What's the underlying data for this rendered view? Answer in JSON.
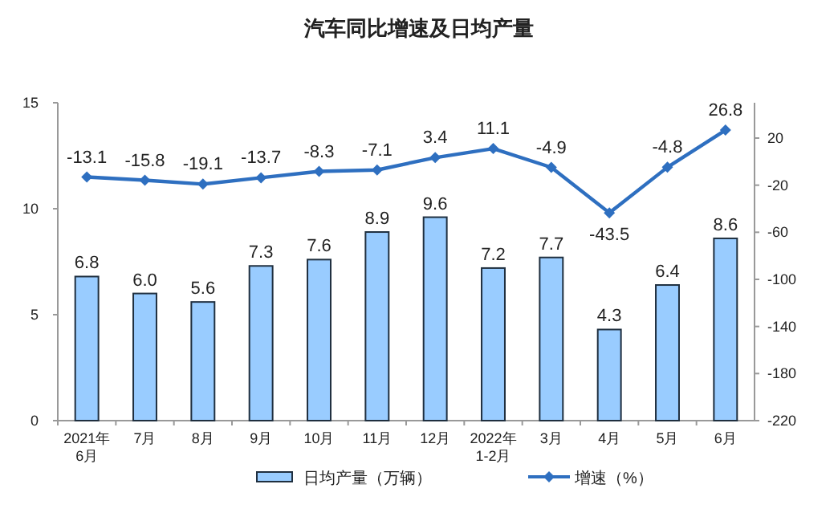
{
  "chart_data": {
    "type": "bar",
    "title": "汽车同比增速及日均产量",
    "categories": [
      "2021年\n6月",
      "7月",
      "8月",
      "9月",
      "10月",
      "11月",
      "12月",
      "2022年\n1-2月",
      "3月",
      "4月",
      "5月",
      "6月"
    ],
    "series": [
      {
        "name": "日均产量（万辆）",
        "color": "#99ccff",
        "values": [
          6.8,
          6.0,
          5.6,
          7.3,
          7.6,
          8.9,
          9.6,
          7.2,
          7.7,
          4.3,
          6.4,
          8.6
        ],
        "value_labels": [
          "6.8",
          "6.0",
          "5.6",
          "7.3",
          "7.6",
          "8.9",
          "9.6",
          "7.2",
          "7.7",
          "4.3",
          "6.4",
          "8.6"
        ]
      },
      {
        "name": "增速（%）",
        "type": "line",
        "axis": "y2",
        "color": "#2e6fc0",
        "marker": "diamond",
        "values": [
          -13.1,
          -15.8,
          -19.1,
          -13.7,
          -8.3,
          -7.1,
          3.4,
          11.1,
          -4.9,
          -43.5,
          -4.8,
          26.8
        ]
      }
    ],
    "ylim": [
      0,
      15
    ],
    "yticks": [
      0,
      5,
      10,
      15
    ],
    "y2lim": [
      -220,
      50
    ],
    "y2ticks": [
      -220,
      -180,
      -140,
      -100,
      -60,
      -20,
      20
    ],
    "data_labels": true,
    "legend": "bottom",
    "grid": false
  }
}
